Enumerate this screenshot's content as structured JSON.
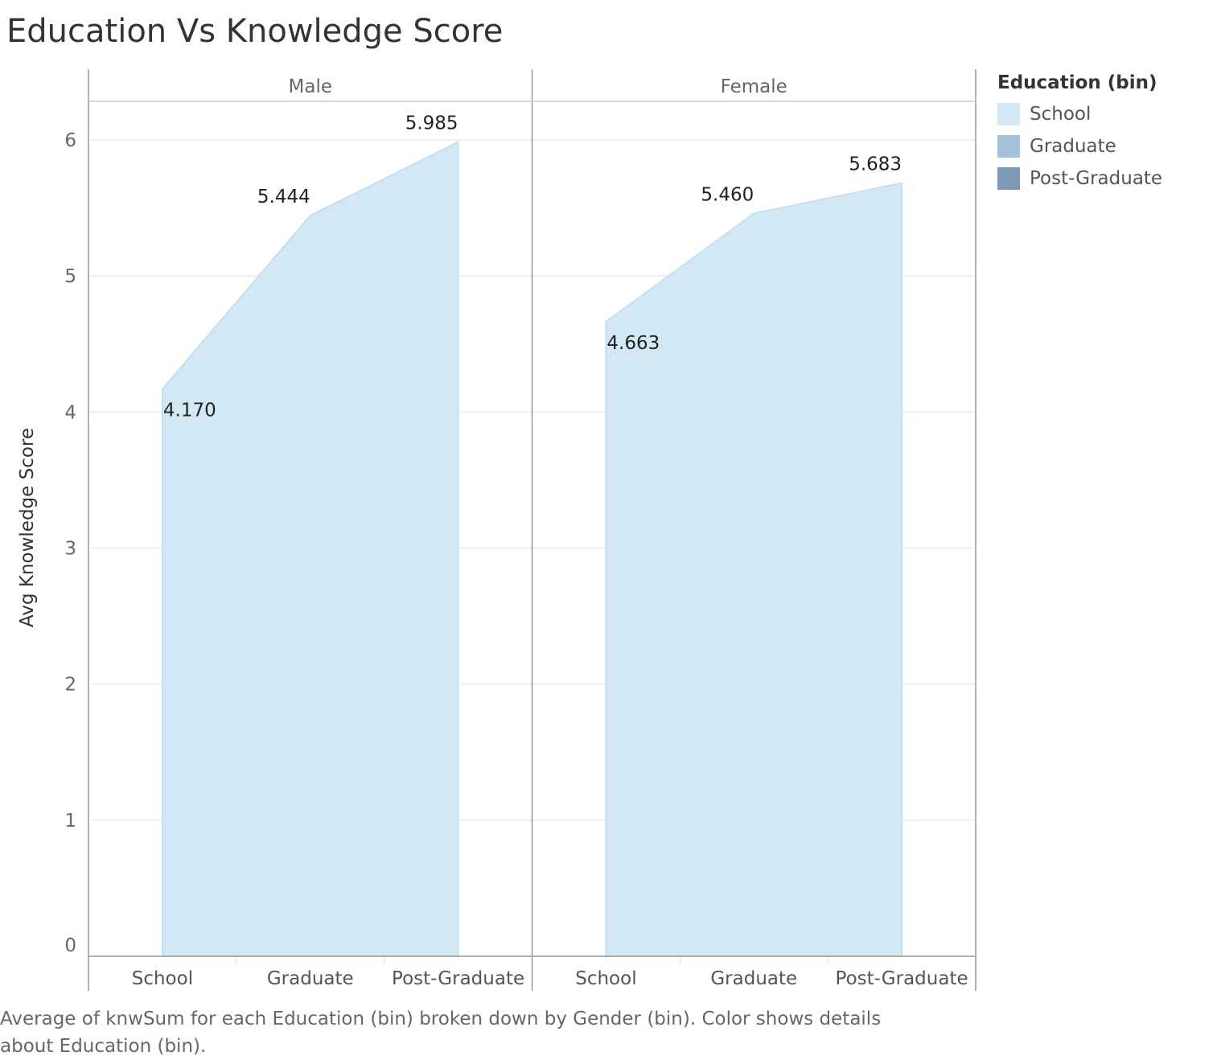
{
  "chart_data": {
    "type": "area",
    "title": "Education Vs Knowledge Score",
    "ylabel": "Avg Knowledge Score",
    "ylim": [
      0,
      6.25
    ],
    "yticks": [
      0,
      1,
      2,
      3,
      4,
      5,
      6
    ],
    "categories": [
      "School",
      "Graduate",
      "Post-Graduate"
    ],
    "panels": [
      {
        "name": "Male",
        "values": [
          4.17,
          5.444,
          5.985
        ],
        "labels": [
          "4.170",
          "5.444",
          "5.985"
        ]
      },
      {
        "name": "Female",
        "values": [
          4.663,
          5.46,
          5.683
        ],
        "labels": [
          "4.663",
          "5.460",
          "5.683"
        ]
      }
    ],
    "fill_color": "#d3e8f5",
    "stroke_color": "#c4e0f0",
    "grid": true,
    "legend": {
      "title": "Education (bin)",
      "placement": "right",
      "items": [
        {
          "label": "School",
          "color": "#d3e8f5"
        },
        {
          "label": "Graduate",
          "color": "#a4c3da"
        },
        {
          "label": "Post-Graduate",
          "color": "#7f9ab6"
        }
      ]
    },
    "caption": "Average of knwSum for each Education (bin) broken down by Gender (bin).  Color shows details about Education (bin)."
  }
}
